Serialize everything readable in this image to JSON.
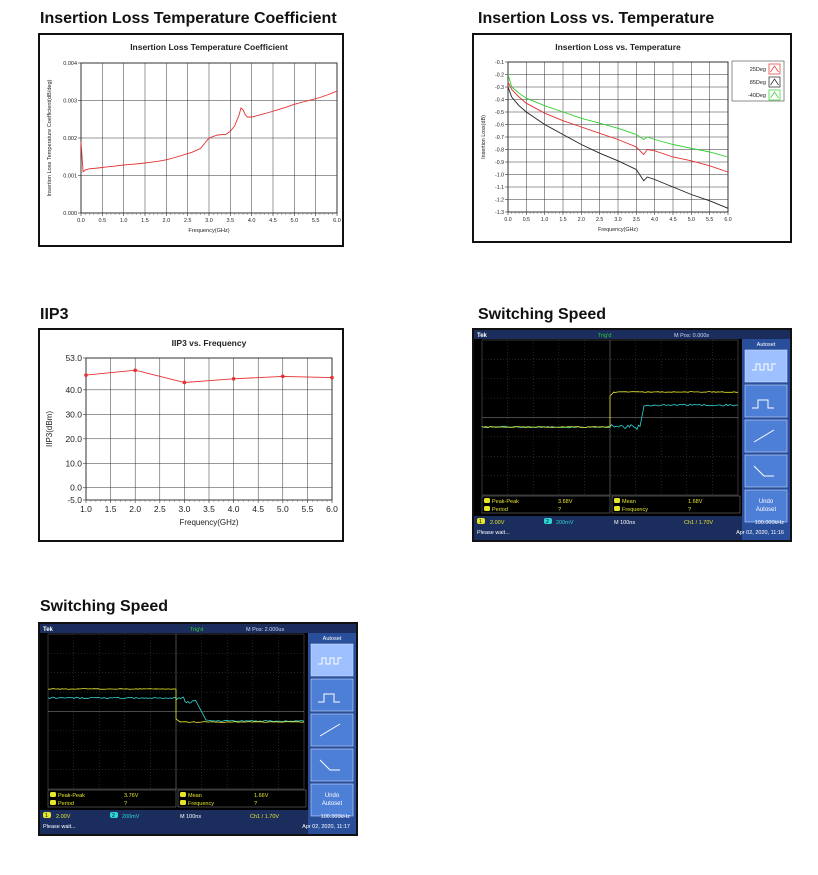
{
  "sections": {
    "s1_title": "Insertion Loss Temperature Coefficient",
    "s2_title": "Insertion Loss vs. Temperature",
    "s3_title": "IIP3",
    "s4_title": "Switching Speed",
    "s5_title": "Switching Speed"
  },
  "chart_data": [
    {
      "type": "line",
      "title": "Insertion Loss Temperature Coefficient",
      "xlabel": "Frequency(GHz)",
      "ylabel": "Insertion Loss Temperature Coefficient(dB/deg)",
      "xlim": [
        0,
        6
      ],
      "ylim": [
        0,
        0.004
      ],
      "xticks": [
        "0.0",
        "0.5",
        "1.0",
        "1.5",
        "2.0",
        "2.5",
        "3.0",
        "3.5",
        "4.0",
        "4.5",
        "5.0",
        "5.5",
        "6.0"
      ],
      "yticks": [
        "0.000",
        "0.001",
        "0.002",
        "0.003",
        "0.004"
      ],
      "grid": true,
      "series": [
        {
          "color": "#e53030",
          "x": [
            0.0,
            0.05,
            0.1,
            0.2,
            0.4,
            0.6,
            0.8,
            1.0,
            1.2,
            1.4,
            1.6,
            1.8,
            2.0,
            2.2,
            2.4,
            2.6,
            2.8,
            3.0,
            3.2,
            3.4,
            3.5,
            3.6,
            3.7,
            3.75,
            3.8,
            3.85,
            3.9,
            4.0,
            4.2,
            4.4,
            4.6,
            4.8,
            5.0,
            5.2,
            5.4,
            5.6,
            5.8,
            6.0
          ],
          "y": [
            0.0019,
            0.0011,
            0.00115,
            0.00118,
            0.0012,
            0.00123,
            0.00125,
            0.00128,
            0.0013,
            0.00132,
            0.00135,
            0.00138,
            0.00142,
            0.00148,
            0.00155,
            0.00162,
            0.00172,
            0.002,
            0.00208,
            0.0021,
            0.00218,
            0.00232,
            0.0026,
            0.0028,
            0.00275,
            0.00262,
            0.00256,
            0.00256,
            0.00262,
            0.00268,
            0.00275,
            0.00282,
            0.0029,
            0.00296,
            0.00302,
            0.00308,
            0.00316,
            0.00325
          ]
        }
      ]
    },
    {
      "type": "line",
      "title": "Insertion Loss vs. Temperature",
      "xlabel": "Frequency(GHz)",
      "ylabel": "Insertion Loss(dB)",
      "xlim": [
        0,
        6
      ],
      "ylim": [
        -1.3,
        -0.1
      ],
      "xticks": [
        "0.0",
        "0.5",
        "1.0",
        "1.5",
        "2.0",
        "2.5",
        "3.0",
        "3.5",
        "4.0",
        "4.5",
        "5.0",
        "5.5",
        "6.0"
      ],
      "yticks": [
        "-0.1",
        "-0.2",
        "-0.3",
        "-0.4",
        "-0.5",
        "-0.6",
        "-0.7",
        "-0.8",
        "-0.9",
        "-1.0",
        "-1.1",
        "-1.2",
        "-1.3"
      ],
      "grid": true,
      "legend_position": "top-right",
      "series": [
        {
          "name": "25Deg",
          "color": "#e53030",
          "x": [
            0.0,
            0.1,
            0.3,
            0.5,
            1.0,
            1.5,
            2.0,
            2.5,
            3.0,
            3.5,
            3.7,
            3.8,
            4.0,
            4.5,
            5.0,
            5.5,
            6.0
          ],
          "y": [
            -0.26,
            -0.32,
            -0.38,
            -0.43,
            -0.51,
            -0.57,
            -0.62,
            -0.67,
            -0.72,
            -0.78,
            -0.84,
            -0.8,
            -0.81,
            -0.86,
            -0.89,
            -0.93,
            -0.98
          ]
        },
        {
          "name": "85Deg",
          "color": "#222222",
          "x": [
            0.0,
            0.1,
            0.3,
            0.5,
            1.0,
            1.5,
            2.0,
            2.5,
            3.0,
            3.5,
            3.7,
            3.8,
            4.0,
            4.5,
            5.0,
            5.5,
            6.0
          ],
          "y": [
            -0.3,
            -0.38,
            -0.45,
            -0.5,
            -0.6,
            -0.68,
            -0.76,
            -0.83,
            -0.89,
            -0.96,
            -1.05,
            -1.02,
            -1.04,
            -1.1,
            -1.16,
            -1.21,
            -1.27
          ]
        },
        {
          "name": "-40Deg",
          "color": "#2ed02e",
          "x": [
            0.0,
            0.1,
            0.3,
            0.5,
            1.0,
            1.5,
            2.0,
            2.5,
            3.0,
            3.5,
            3.7,
            3.8,
            4.0,
            4.5,
            5.0,
            5.5,
            6.0
          ],
          "y": [
            -0.2,
            -0.3,
            -0.35,
            -0.39,
            -0.45,
            -0.5,
            -0.55,
            -0.59,
            -0.63,
            -0.68,
            -0.72,
            -0.7,
            -0.72,
            -0.76,
            -0.79,
            -0.82,
            -0.86
          ]
        }
      ]
    },
    {
      "type": "line",
      "title": "IIP3 vs. Frequency",
      "xlabel": "Frequency(GHz)",
      "ylabel": "IIP3(dBm)",
      "xlim": [
        1.0,
        6.0
      ],
      "ylim": [
        -5.0,
        53.0
      ],
      "xticks": [
        "1.0",
        "1.5",
        "2.0",
        "2.5",
        "3.0",
        "3.5",
        "4.0",
        "4.5",
        "5.0",
        "5.5",
        "6.0"
      ],
      "yticks": [
        "53.0",
        "40.0",
        "30.0",
        "20.0",
        "10.0",
        "0.0",
        "-5.0"
      ],
      "grid": true,
      "series": [
        {
          "color": "#e53030",
          "x": [
            1.0,
            2.0,
            3.0,
            4.0,
            5.0,
            6.0
          ],
          "y": [
            46.0,
            48.0,
            43.0,
            44.5,
            45.5,
            45.0
          ]
        }
      ]
    }
  ],
  "scope1": {
    "brand": "Tek",
    "trig_status": "Trig'd",
    "mpos": "M Pos: 0.000s",
    "autoset": "Autoset",
    "undo": "Undo Autoset",
    "m1_label": "Peak-Peak",
    "m1_value": "3.68V",
    "m2_label": "Period",
    "m2_value": "?",
    "m3_label": "Mean",
    "m3_value": "1.68V",
    "m4_label": "Frequency",
    "m4_value": "?",
    "ch1_scale": "2.00V",
    "ch2_scale": "200mV",
    "timebase": "M 100ns",
    "trigger": "Ch1 / 1.70V",
    "trig_freq": "100.000kHz",
    "status": "Please wait...",
    "date": "Apr 02, 2020, 11:16",
    "ch1_num": "1",
    "ch2_num": "2"
  },
  "scope2": {
    "brand": "Tek",
    "trig_status": "Trig'd",
    "mpos": "M Pos: 2.000us",
    "autoset": "Autoset",
    "undo": "Undo Autoset",
    "m1_label": "Peak-Peak",
    "m1_value": "3.76V",
    "m2_label": "Period",
    "m2_value": "?",
    "m3_label": "Mean",
    "m3_value": "1.66V",
    "m4_label": "Frequency",
    "m4_value": "?",
    "ch1_scale": "2.00V",
    "ch2_scale": "200mV",
    "timebase": "M 100ns",
    "trigger": "Ch1 / 1.70V",
    "trig_freq": "100.000kHz",
    "status": "Please wait...",
    "date": "Apr 02, 2020, 11:17",
    "ch1_num": "1",
    "ch2_num": "2"
  },
  "colors": {
    "trace_red": "#e53030",
    "trace_black": "#222222",
    "trace_green": "#2ed02e",
    "scope_bg": "#000000",
    "scope_ch1": "#e6e62e",
    "scope_ch2": "#2ed6d6",
    "scope_panel": "#2a4f9a",
    "scope_button": "#4d7fd6"
  }
}
